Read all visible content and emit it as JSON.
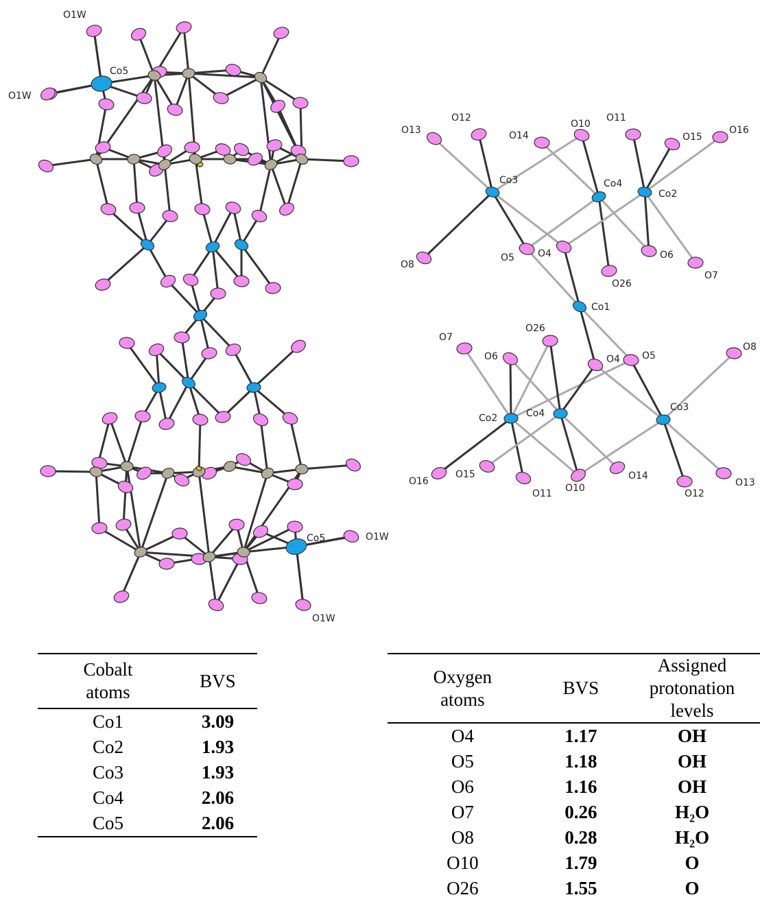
{
  "structure_left": {
    "labels": [
      "O1W",
      "O1W",
      "Co5",
      "Co5",
      "O1W",
      "O1W"
    ]
  },
  "structure_right": {
    "labels": [
      "O13",
      "O12",
      "O14",
      "O10",
      "O11",
      "O15",
      "O16",
      "Co3",
      "Co4",
      "Co2",
      "O8",
      "O5",
      "O4",
      "O6",
      "O26",
      "O7",
      "Co1",
      "O26",
      "O7",
      "O6",
      "O4",
      "O5",
      "O8",
      "Co2",
      "Co4",
      "Co3",
      "O16",
      "O15",
      "O11",
      "O10",
      "O14",
      "O12",
      "O13"
    ]
  },
  "table_cobalt": {
    "header": [
      "Cobalt atoms",
      "BVS"
    ],
    "rows": [
      [
        "Co1",
        "3.09"
      ],
      [
        "Co2",
        "1.93"
      ],
      [
        "Co3",
        "1.93"
      ],
      [
        "Co4",
        "2.06"
      ],
      [
        "Co5",
        "2.06"
      ]
    ]
  },
  "table_oxygen": {
    "header": [
      "Oxygen atoms",
      "BVS",
      "Assigned protonation levels"
    ],
    "rows": [
      [
        "O4",
        "1.17",
        "OH"
      ],
      [
        "O5",
        "1.18",
        "OH"
      ],
      [
        "O6",
        "1.16",
        "OH"
      ],
      [
        "O7",
        "0.26",
        "H₂O"
      ],
      [
        "O8",
        "0.28",
        "H₂O"
      ],
      [
        "O10",
        "1.79",
        "O"
      ],
      [
        "O26",
        "1.55",
        "O"
      ]
    ]
  }
}
